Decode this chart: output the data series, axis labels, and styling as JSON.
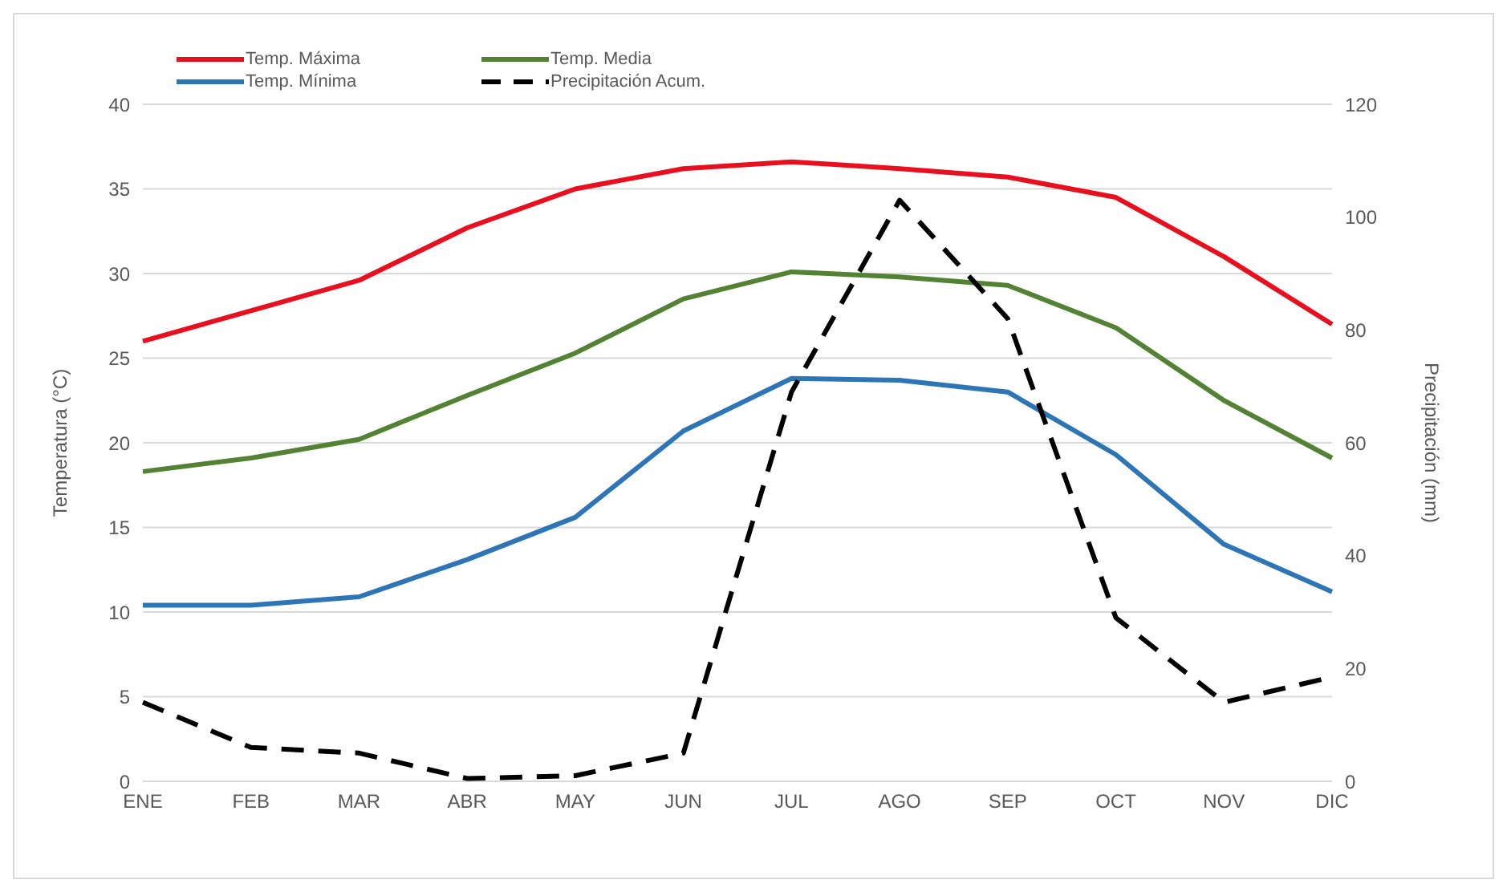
{
  "chart_data": {
    "type": "line",
    "categories": [
      "ENE",
      "FEB",
      "MAR",
      "ABR",
      "MAY",
      "JUN",
      "JUL",
      "AGO",
      "SEP",
      "OCT",
      "NOV",
      "DIC"
    ],
    "series": [
      {
        "name": "Temp. Máxima",
        "color": "#e8101f",
        "values": [
          26,
          27.8,
          29.6,
          32.7,
          35,
          36.2,
          36.6,
          36.2,
          35.7,
          34.5,
          31,
          27
        ]
      },
      {
        "name": "Temp. Media",
        "color": "#548235",
        "values": [
          18.3,
          19.1,
          20.2,
          22.8,
          25.3,
          28.5,
          30.1,
          29.8,
          29.3,
          26.8,
          22.5,
          19.1
        ]
      },
      {
        "name": "Temp. Mínima",
        "color": "#2e75b6",
        "values": [
          10.4,
          10.4,
          10.9,
          13.1,
          15.6,
          20.7,
          23.8,
          23.7,
          23,
          19.3,
          14,
          11.2
        ]
      },
      {
        "name": "Precipitación Acum.",
        "color": "#000000",
        "axis": "y2",
        "line_style": "dashed",
        "values": [
          14,
          6,
          5,
          0.5,
          1,
          5,
          69,
          103,
          82,
          29,
          14,
          18.5
        ]
      }
    ],
    "ylabel": "Temperatura (°C)",
    "y2label": "Precipitación (mm)",
    "ylim": [
      0,
      40
    ],
    "yticks": [
      0,
      5,
      10,
      15,
      20,
      25,
      30,
      35,
      40
    ],
    "y2lim": [
      0,
      120
    ],
    "y2ticks": [
      0,
      20,
      40,
      60,
      80,
      100,
      120
    ],
    "grid": "y",
    "legend": "top left",
    "marker": "none",
    "line_style": "solid"
  }
}
